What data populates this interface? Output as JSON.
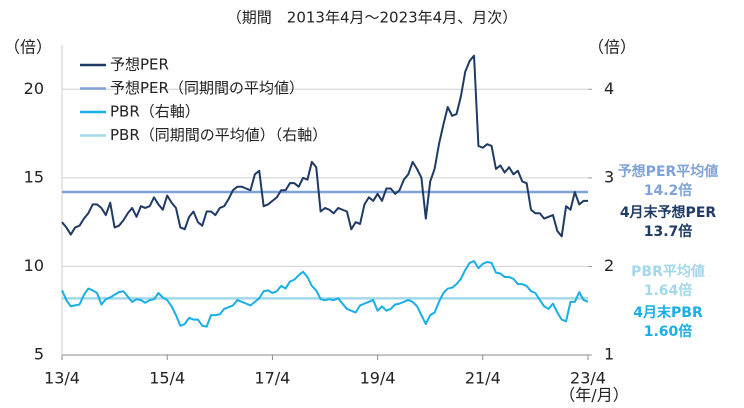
{
  "chart_data": {
    "type": "line",
    "title": "（期間　2013年4月～2023年4月、月次）",
    "y_label": "（倍）",
    "y2_label": "（倍）",
    "x_label": "（年/月）",
    "categories": [
      "13/4",
      null,
      null,
      null,
      null,
      null,
      null,
      null,
      null,
      null,
      null,
      null,
      null,
      null,
      null,
      null,
      null,
      null,
      null,
      null,
      null,
      null,
      null,
      null,
      "15/4",
      null,
      null,
      null,
      null,
      null,
      null,
      null,
      null,
      null,
      null,
      null,
      null,
      null,
      null,
      null,
      null,
      null,
      null,
      null,
      null,
      null,
      null,
      null,
      "17/4",
      null,
      null,
      null,
      null,
      null,
      null,
      null,
      null,
      null,
      null,
      null,
      null,
      null,
      null,
      null,
      null,
      null,
      null,
      null,
      null,
      null,
      null,
      null,
      "19/4",
      null,
      null,
      null,
      null,
      null,
      null,
      null,
      null,
      null,
      null,
      null,
      null,
      null,
      null,
      null,
      null,
      null,
      null,
      null,
      null,
      null,
      null,
      null,
      "21/4",
      null,
      null,
      null,
      null,
      null,
      null,
      null,
      null,
      null,
      null,
      null,
      null,
      null,
      null,
      null,
      null,
      null,
      null,
      null,
      null,
      null,
      null,
      null,
      "23/4"
    ],
    "series": [
      {
        "name": "予想PER",
        "color": "#1f3a64",
        "axis": "y",
        "values": [
          12.5,
          12.2,
          11.8,
          12.2,
          12.3,
          12.7,
          13.0,
          13.5,
          13.5,
          13.3,
          12.9,
          13.6,
          12.2,
          12.3,
          12.6,
          13.0,
          13.3,
          12.8,
          13.4,
          13.3,
          13.4,
          13.9,
          13.5,
          13.2,
          14.0,
          13.6,
          13.3,
          12.2,
          12.1,
          12.8,
          13.1,
          12.5,
          12.3,
          13.1,
          13.1,
          12.9,
          13.3,
          13.4,
          13.8,
          14.3,
          14.5,
          14.5,
          14.4,
          14.3,
          15.2,
          15.4,
          13.4,
          13.5,
          13.7,
          13.9,
          14.3,
          14.3,
          14.7,
          14.7,
          14.5,
          15.0,
          14.9,
          15.9,
          15.6,
          13.1,
          13.3,
          13.2,
          13.0,
          13.3,
          13.2,
          13.1,
          12.1,
          12.5,
          12.4,
          13.5,
          13.9,
          13.7,
          14.1,
          13.7,
          14.4,
          14.4,
          14.1,
          14.3,
          14.9,
          15.2,
          15.9,
          15.5,
          15.0,
          12.7,
          14.8,
          15.5,
          16.9,
          18.0,
          19.0,
          18.5,
          18.6,
          19.6,
          21.0,
          21.6,
          21.9,
          16.8,
          16.7,
          16.9,
          16.8,
          15.5,
          15.7,
          15.3,
          15.6,
          15.2,
          15.4,
          14.8,
          14.7,
          13.2,
          13.0,
          13.0,
          12.7,
          12.8,
          12.9,
          12.0,
          11.7,
          13.4,
          13.2,
          14.2,
          13.5,
          13.7,
          13.7
        ]
      },
      {
        "name": "PBR（右軸）",
        "color": "#1aaee6",
        "axis": "y2",
        "values": [
          1.73,
          1.62,
          1.55,
          1.56,
          1.57,
          1.68,
          1.75,
          1.73,
          1.7,
          1.57,
          1.63,
          1.65,
          1.68,
          1.71,
          1.72,
          1.66,
          1.6,
          1.63,
          1.62,
          1.59,
          1.62,
          1.63,
          1.7,
          1.65,
          1.62,
          1.55,
          1.45,
          1.33,
          1.35,
          1.42,
          1.4,
          1.4,
          1.33,
          1.32,
          1.45,
          1.45,
          1.46,
          1.52,
          1.54,
          1.56,
          1.62,
          1.6,
          1.58,
          1.56,
          1.6,
          1.64,
          1.72,
          1.73,
          1.7,
          1.72,
          1.78,
          1.75,
          1.83,
          1.85,
          1.9,
          1.94,
          1.88,
          1.78,
          1.73,
          1.63,
          1.62,
          1.63,
          1.62,
          1.64,
          1.58,
          1.52,
          1.5,
          1.48,
          1.56,
          1.58,
          1.6,
          1.62,
          1.5,
          1.55,
          1.5,
          1.52,
          1.57,
          1.58,
          1.6,
          1.62,
          1.6,
          1.55,
          1.45,
          1.35,
          1.45,
          1.48,
          1.6,
          1.7,
          1.75,
          1.76,
          1.8,
          1.86,
          1.96,
          2.04,
          2.06,
          1.98,
          2.03,
          2.05,
          2.04,
          1.93,
          1.92,
          1.88,
          1.88,
          1.86,
          1.8,
          1.8,
          1.78,
          1.72,
          1.7,
          1.62,
          1.55,
          1.52,
          1.58,
          1.48,
          1.4,
          1.38,
          1.6,
          1.6,
          1.71,
          1.62,
          1.6
        ]
      }
    ],
    "reference_lines": [
      {
        "name": "予想PER（同期間の平均値）",
        "value": 14.2,
        "color": "#7fa3d6",
        "axis": "y"
      },
      {
        "name": "PBR（同期間の平均値）（右軸）",
        "value": 1.64,
        "color": "#a3d8ea",
        "axis": "y2"
      }
    ],
    "legend_order": [
      "series.0",
      "reference_lines.0",
      "series.1",
      "reference_lines.1"
    ],
    "annotations": [
      {
        "text": "予想PER平均値",
        "color": "#7fa3d6"
      },
      {
        "text": "14.2倍",
        "color": "#7fa3d6"
      },
      {
        "text": "4月末予想PER",
        "color": "#1f3a64"
      },
      {
        "text": "13.7倍",
        "color": "#1f3a64"
      },
      {
        "text": "PBR平均値",
        "color": "#a3d8ea"
      },
      {
        "text": "1.64倍",
        "color": "#a3d8ea"
      },
      {
        "text": "4月末PBR",
        "color": "#1aaee6"
      },
      {
        "text": "1.60倍",
        "color": "#1aaee6"
      }
    ],
    "ylim": [
      5,
      22.5
    ],
    "yticks": [
      5,
      10,
      15,
      20
    ],
    "y2lim": [
      1,
      4.5
    ],
    "y2ticks": [
      1,
      2,
      3,
      4
    ],
    "grid": true,
    "legend": "top-left"
  }
}
